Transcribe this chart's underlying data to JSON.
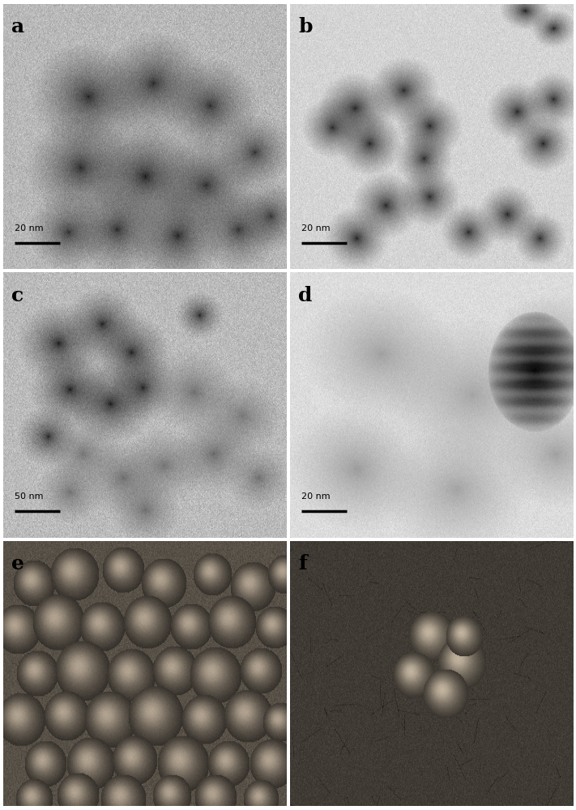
{
  "figsize": [
    7.11,
    10.0
  ],
  "dpi": 100,
  "panels": [
    "a",
    "b",
    "c",
    "d",
    "e",
    "f"
  ],
  "grid_rows": 3,
  "grid_cols": 2,
  "label_fontsize": 18,
  "label_fontweight": "bold",
  "scale_bars": {
    "a": "20 nm",
    "b": "20 nm",
    "c": "50 nm",
    "d": "20 nm",
    "e": null,
    "f": null
  },
  "bg_gray": {
    "a": 0.72,
    "b": 0.83,
    "c": 0.73,
    "d": 0.86,
    "e": 0.4,
    "f": 0.3
  }
}
